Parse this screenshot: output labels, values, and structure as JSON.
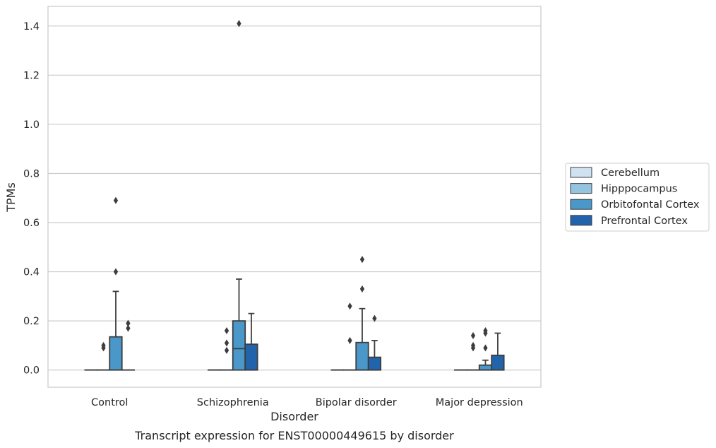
{
  "chart_data": {
    "type": "box",
    "title": "",
    "caption": "Transcript expression for ENST00000449615 by disorder",
    "xlabel": "Disorder",
    "ylabel": "TPMs",
    "ylim": [
      -0.07,
      1.48
    ],
    "yticks": [
      "0.0",
      "0.2",
      "0.4",
      "0.6",
      "0.8",
      "1.0",
      "1.2",
      "1.4"
    ],
    "grid": "horizontal",
    "legend_position": "right",
    "categories": [
      "Control",
      "Schizophrenia",
      "Bipolar disorder",
      "Major depression"
    ],
    "series": [
      {
        "name": "Cerebellum",
        "color": "#d0e1f2",
        "boxes": [
          {
            "q1": 0,
            "median": 0,
            "q3": 0,
            "whisker_low": 0,
            "whisker_high": 0,
            "outliers": []
          },
          {
            "q1": 0,
            "median": 0,
            "q3": 0,
            "whisker_low": 0,
            "whisker_high": 0,
            "outliers": []
          },
          {
            "q1": 0,
            "median": 0,
            "q3": 0,
            "whisker_low": 0,
            "whisker_high": 0,
            "outliers": []
          },
          {
            "q1": 0,
            "median": 0,
            "q3": 0,
            "whisker_low": 0,
            "whisker_high": 0,
            "outliers": []
          }
        ]
      },
      {
        "name": "Hipppocampus",
        "color": "#94c4df",
        "boxes": [
          {
            "q1": 0,
            "median": 0,
            "q3": 0,
            "whisker_low": 0,
            "whisker_high": 0,
            "outliers": [
              0.09,
              0.1
            ]
          },
          {
            "q1": 0,
            "median": 0,
            "q3": 0,
            "whisker_low": 0,
            "whisker_high": 0,
            "outliers": [
              0.08,
              0.11,
              0.16
            ]
          },
          {
            "q1": 0,
            "median": 0,
            "q3": 0,
            "whisker_low": 0,
            "whisker_high": 0,
            "outliers": [
              0.12,
              0.26
            ]
          },
          {
            "q1": 0,
            "median": 0,
            "q3": 0,
            "whisker_low": 0,
            "whisker_high": 0,
            "outliers": [
              0.1,
              0.14,
              0.09
            ]
          }
        ]
      },
      {
        "name": "Orbitofontal Cortex",
        "color": "#4a98c9",
        "boxes": [
          {
            "q1": 0,
            "median": 0,
            "q3": 0.135,
            "whisker_low": 0,
            "whisker_high": 0.32,
            "outliers": [
              0.4,
              0.69
            ]
          },
          {
            "q1": 0,
            "median": 0.087,
            "q3": 0.2,
            "whisker_low": 0,
            "whisker_high": 0.37,
            "outliers": [
              1.41
            ]
          },
          {
            "q1": 0,
            "median": 0,
            "q3": 0.112,
            "whisker_low": 0,
            "whisker_high": 0.25,
            "outliers": [
              0.33,
              0.45
            ]
          },
          {
            "q1": 0,
            "median": 0,
            "q3": 0.02,
            "whisker_low": 0,
            "whisker_high": 0.04,
            "outliers": [
              0.09,
              0.15,
              0.16
            ]
          }
        ]
      },
      {
        "name": "Prefrontal Cortex",
        "color": "#2164ab",
        "boxes": [
          {
            "q1": 0,
            "median": 0,
            "q3": 0,
            "whisker_low": 0,
            "whisker_high": 0,
            "outliers": [
              0.17,
              0.19
            ]
          },
          {
            "q1": 0,
            "median": 0,
            "q3": 0.105,
            "whisker_low": 0,
            "whisker_high": 0.23,
            "outliers": []
          },
          {
            "q1": 0,
            "median": 0,
            "q3": 0.052,
            "whisker_low": 0,
            "whisker_high": 0.12,
            "outliers": [
              0.21
            ]
          },
          {
            "q1": 0,
            "median": 0,
            "q3": 0.06,
            "whisker_low": 0,
            "whisker_high": 0.15,
            "outliers": []
          }
        ]
      }
    ]
  }
}
